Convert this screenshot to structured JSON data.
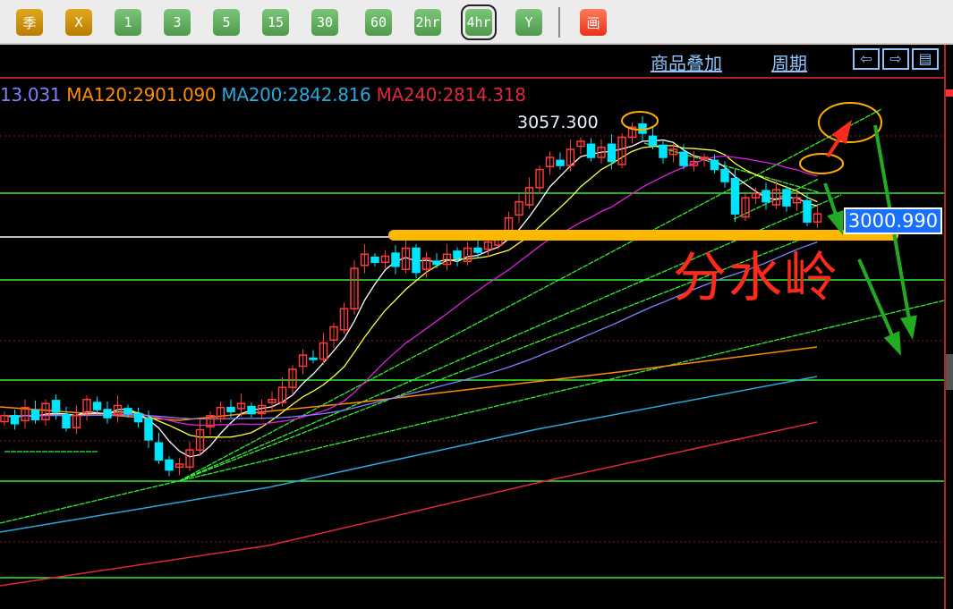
{
  "toolbar": {
    "buttons": [
      {
        "label": "季",
        "style": "gold"
      },
      {
        "label": "X",
        "style": "gold"
      },
      {
        "label": "1"
      },
      {
        "label": "3"
      },
      {
        "label": "5"
      },
      {
        "label": "15"
      },
      {
        "label": "30"
      },
      {
        "label": "60"
      },
      {
        "label": "2hr"
      },
      {
        "label": "4hr",
        "selected": true
      },
      {
        "label": "Y"
      },
      {
        "label": "画",
        "style": "red",
        "icon": "drawing-tool-icon"
      }
    ]
  },
  "header": {
    "overlay_label": "商品叠加",
    "period_label": "周期",
    "nav_icons": [
      "arrow-left-icon",
      "arrow-right-icon",
      "panel-layout-icon"
    ]
  },
  "ma_row": [
    {
      "text": "13.031",
      "color": "#8080ff"
    },
    {
      "text": "MA120:2901.090",
      "color": "#ff8c00"
    },
    {
      "text": "MA200:2842.816",
      "color": "#2aa8e0"
    },
    {
      "text": "MA240:2814.318",
      "color": "#e0283c"
    }
  ],
  "high_label": "3057.300",
  "current_price": "3000.990",
  "annotation_text": "分水岭",
  "colors": {
    "up": "#ff3b3b",
    "down": "#00e5ff",
    "ma5": "#ffffff",
    "ma10": "#ffff40",
    "ma20": "#e020e0",
    "ma60": "#8080ff",
    "trend": "#33ee33",
    "watershed": "#ffb800"
  },
  "chart_data": {
    "type": "candlestick",
    "closes": [
      2912,
      2908,
      2916,
      2910,
      2918,
      2914,
      2906,
      2912,
      2920,
      2915,
      2911,
      2917,
      2913,
      2909,
      2900,
      2890,
      2885,
      2888,
      2895,
      2905,
      2912,
      2916,
      2914,
      2918,
      2913,
      2917,
      2920,
      2926,
      2935,
      2942,
      2940,
      2948,
      2956,
      2965,
      2985,
      2992,
      2988,
      2991,
      2986,
      2995,
      2983,
      2990,
      2987,
      2992,
      2990,
      2995,
      2993,
      2998,
      3002,
      3010,
      3018,
      3025,
      3034,
      3040,
      3036,
      3044,
      3048,
      3040,
      3045,
      3038,
      3050,
      3055,
      3052,
      3046,
      3040,
      3044,
      3036,
      3038,
      3040,
      3034,
      3028,
      3012,
      3020,
      3022,
      3018,
      3024,
      3016,
      3020,
      3008,
      3012
    ],
    "high": 3057.3,
    "watershed_level": 3000.99
  }
}
